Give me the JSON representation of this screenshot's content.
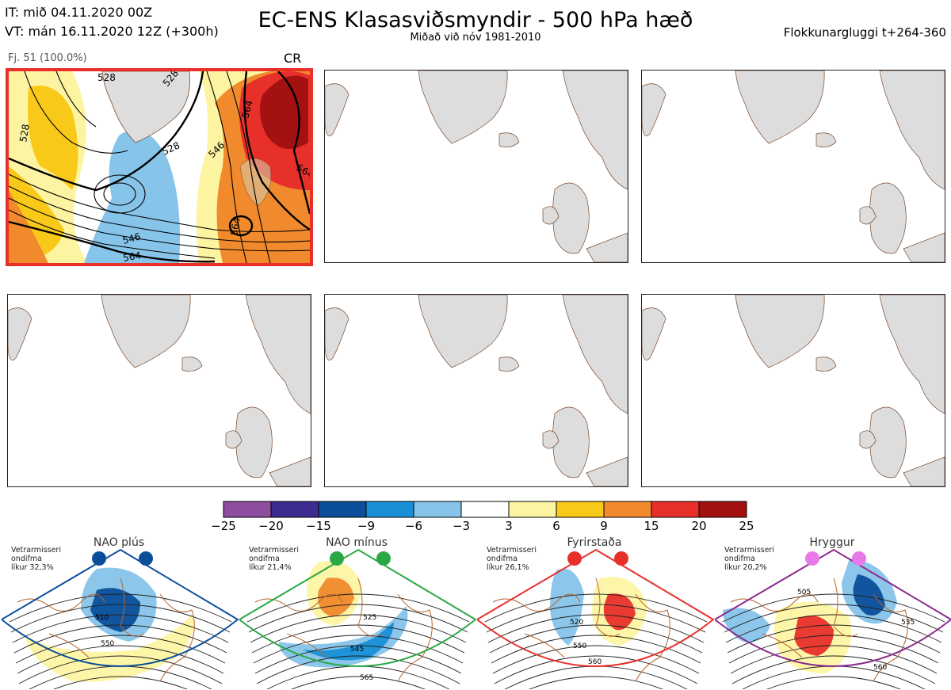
{
  "header": {
    "it_line": "IT: mið 04.11.2020 00Z",
    "vt_line": "VT: mán 16.11.2020 12Z  (+300h)",
    "title": "EC-ENS Klasasviðsmyndir - 500 hPa hæð",
    "subtitle": "Miðað við nóv 1981-2010",
    "window": "Flokkunargluggi t+264-360"
  },
  "panel1": {
    "member": "Fj. 51 (100.0%)",
    "regime": "CR",
    "contour_labels": [
      "528",
      "528",
      "528",
      "546",
      "546",
      "564",
      "564",
      "564",
      "564",
      "528"
    ]
  },
  "colorbar": {
    "ticks": [
      "−25",
      "−20",
      "−15",
      "−9",
      "−6",
      "−3",
      "3",
      "6",
      "9",
      "15",
      "20",
      "25"
    ],
    "colors": [
      "#8e4ea0",
      "#3c2c8f",
      "#0b4f9b",
      "#1a8fd6",
      "#86c4ea",
      "#ffffff",
      "#fdf4a2",
      "#f9c91a",
      "#f08a2c",
      "#e8302a",
      "#a31111"
    ]
  },
  "regimes": [
    {
      "title": "NAO plús",
      "note": [
        "Vetrarmisseri",
        "ondifma",
        "líkur 32,3%"
      ],
      "color": "#0b4f9b",
      "labels": [
        "510",
        "550"
      ]
    },
    {
      "title": "NAO mínus",
      "note": [
        "Vetrarmisseri",
        "ondifma",
        "líkur 21,4%"
      ],
      "color": "#2aa845",
      "labels": [
        "525",
        "545",
        "565"
      ]
    },
    {
      "title": "Fyrirstaða",
      "note": [
        "Vetrarmisseri",
        "ondifma",
        "líkur 26,1%"
      ],
      "color": "#e8302a",
      "labels": [
        "520",
        "550",
        "560"
      ]
    },
    {
      "title": "Hryggur",
      "note": [
        "Vetrarmisseri",
        "ondifma",
        "líkur 20,2%"
      ],
      "color": "#8a2b8f",
      "labels": [
        "505",
        "535",
        "560"
      ]
    }
  ]
}
